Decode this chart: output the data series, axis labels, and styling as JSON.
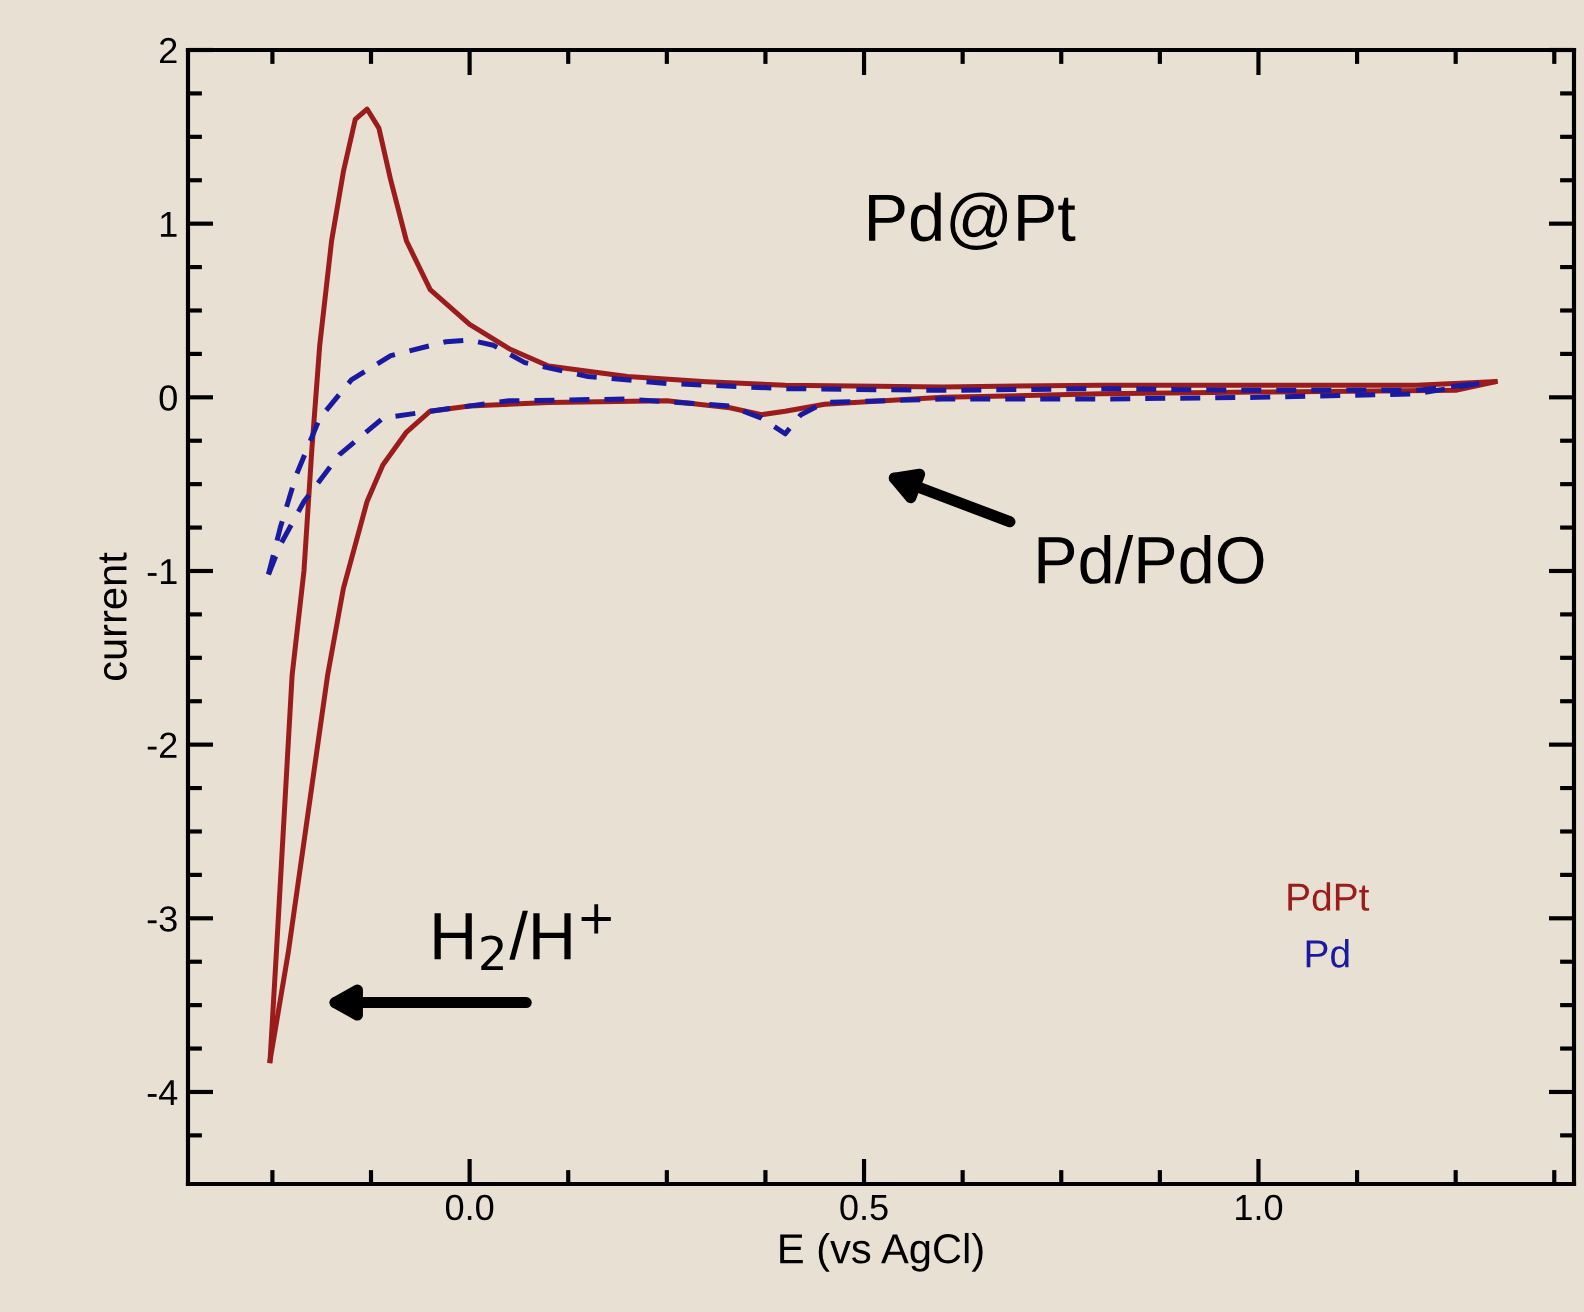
{
  "chart_data": {
    "type": "line",
    "xlabel": "E (vs AgCl)",
    "ylabel": "current",
    "xlim": [
      -0.357,
      1.4
    ],
    "ylim": [
      -4.53,
      2
    ],
    "xticks": [
      {
        "value": -0.25,
        "label": null
      },
      {
        "value": -0.125,
        "label": null
      },
      {
        "value": 0,
        "label": "0.0"
      },
      {
        "value": 0.125,
        "label": null
      },
      {
        "value": 0.25,
        "label": null
      },
      {
        "value": 0.375,
        "label": null
      },
      {
        "value": 0.5,
        "label": "0.5"
      },
      {
        "value": 0.625,
        "label": null
      },
      {
        "value": 0.75,
        "label": null
      },
      {
        "value": 0.875,
        "label": null
      },
      {
        "value": 1.0,
        "label": "1.0"
      },
      {
        "value": 1.125,
        "label": null
      },
      {
        "value": 1.25,
        "label": null
      },
      {
        "value": 1.375,
        "label": null
      }
    ],
    "yticks": [
      {
        "value": -4.25,
        "label": null
      },
      -4,
      {
        "value": -3.75,
        "label": null
      },
      {
        "value": -3.5,
        "label": null
      },
      {
        "value": -3.25,
        "label": null
      },
      -3,
      {
        "value": -2.75,
        "label": null
      },
      {
        "value": -2.5,
        "label": null
      },
      {
        "value": -2.25,
        "label": null
      },
      -2,
      {
        "value": -1.75,
        "label": null
      },
      {
        "value": -1.5,
        "label": null
      },
      {
        "value": -1.25,
        "label": null
      },
      -1,
      {
        "value": -0.75,
        "label": null
      },
      {
        "value": -0.5,
        "label": null
      },
      {
        "value": -0.25,
        "label": null
      },
      0,
      {
        "value": 0.25,
        "label": null
      },
      {
        "value": 0.5,
        "label": null
      },
      {
        "value": 0.75,
        "label": null
      },
      1,
      {
        "value": 1.25,
        "label": null
      },
      {
        "value": 1.5,
        "label": null
      },
      {
        "value": 1.75,
        "label": null
      },
      2
    ],
    "grid": false,
    "marker": "none",
    "series": [
      {
        "name": "PdPt",
        "color": "#9b1c1c",
        "line_style": "solid",
        "x": [
          -0.253,
          -0.245,
          -0.235,
          -0.225,
          -0.21,
          -0.2,
          -0.19,
          -0.175,
          -0.16,
          -0.145,
          -0.13,
          -0.115,
          -0.1,
          -0.08,
          -0.05,
          0.0,
          0.05,
          0.1,
          0.2,
          0.3,
          0.4,
          0.6,
          0.8,
          1.0,
          1.2,
          1.3
        ],
        "values": [
          -3.82,
          -3.2,
          -2.4,
          -1.6,
          -1.0,
          -0.3,
          0.3,
          0.9,
          1.3,
          1.6,
          1.66,
          1.55,
          1.25,
          0.9,
          0.62,
          0.42,
          0.28,
          0.18,
          0.12,
          0.09,
          0.07,
          0.06,
          0.07,
          0.07,
          0.07,
          0.09
        ]
      },
      {
        "color": "#9b1c1c",
        "line_style": "solid",
        "x": [
          1.3,
          1.25,
          1.0,
          0.8,
          0.6,
          0.45,
          0.4,
          0.37,
          0.33,
          0.25,
          0.1,
          0.0,
          -0.05,
          -0.08,
          -0.11,
          -0.13,
          -0.16,
          -0.18,
          -0.205,
          -0.23,
          -0.253
        ],
        "values": [
          0.09,
          0.04,
          0.03,
          0.02,
          0.0,
          -0.04,
          -0.08,
          -0.1,
          -0.06,
          -0.02,
          -0.03,
          -0.05,
          -0.08,
          -0.2,
          -0.39,
          -0.6,
          -1.1,
          -1.6,
          -2.4,
          -3.2,
          -3.82
        ]
      },
      {
        "name": "Pd",
        "color": "#1a1aa0",
        "line_style": "dashed",
        "x": [
          -0.255,
          -0.24,
          -0.22,
          -0.19,
          -0.15,
          -0.1,
          -0.03,
          0.0,
          0.03,
          0.07,
          0.15,
          0.25,
          0.4,
          0.6,
          0.8,
          1.0,
          1.2,
          1.28
        ],
        "values": [
          -1.02,
          -0.75,
          -0.45,
          -0.12,
          0.1,
          0.24,
          0.32,
          0.33,
          0.3,
          0.2,
          0.12,
          0.08,
          0.05,
          0.04,
          0.05,
          0.04,
          0.04,
          0.08
        ]
      },
      {
        "color": "#1a1aa0",
        "line_style": "dashed",
        "x": [
          1.28,
          1.2,
          1.0,
          0.8,
          0.6,
          0.45,
          0.42,
          0.4,
          0.37,
          0.33,
          0.2,
          0.05,
          -0.05,
          -0.11,
          -0.165,
          -0.21,
          -0.24,
          -0.255
        ],
        "values": [
          0.08,
          0.02,
          0.0,
          -0.01,
          -0.01,
          -0.03,
          -0.1,
          -0.21,
          -0.12,
          -0.05,
          -0.01,
          -0.02,
          -0.08,
          -0.12,
          -0.33,
          -0.6,
          -0.85,
          -1.02
        ]
      }
    ],
    "annotations": [
      "Pd@Pt",
      "Pd/PdO",
      "H$_{2}$/H$^{+}$"
    ]
  }
}
